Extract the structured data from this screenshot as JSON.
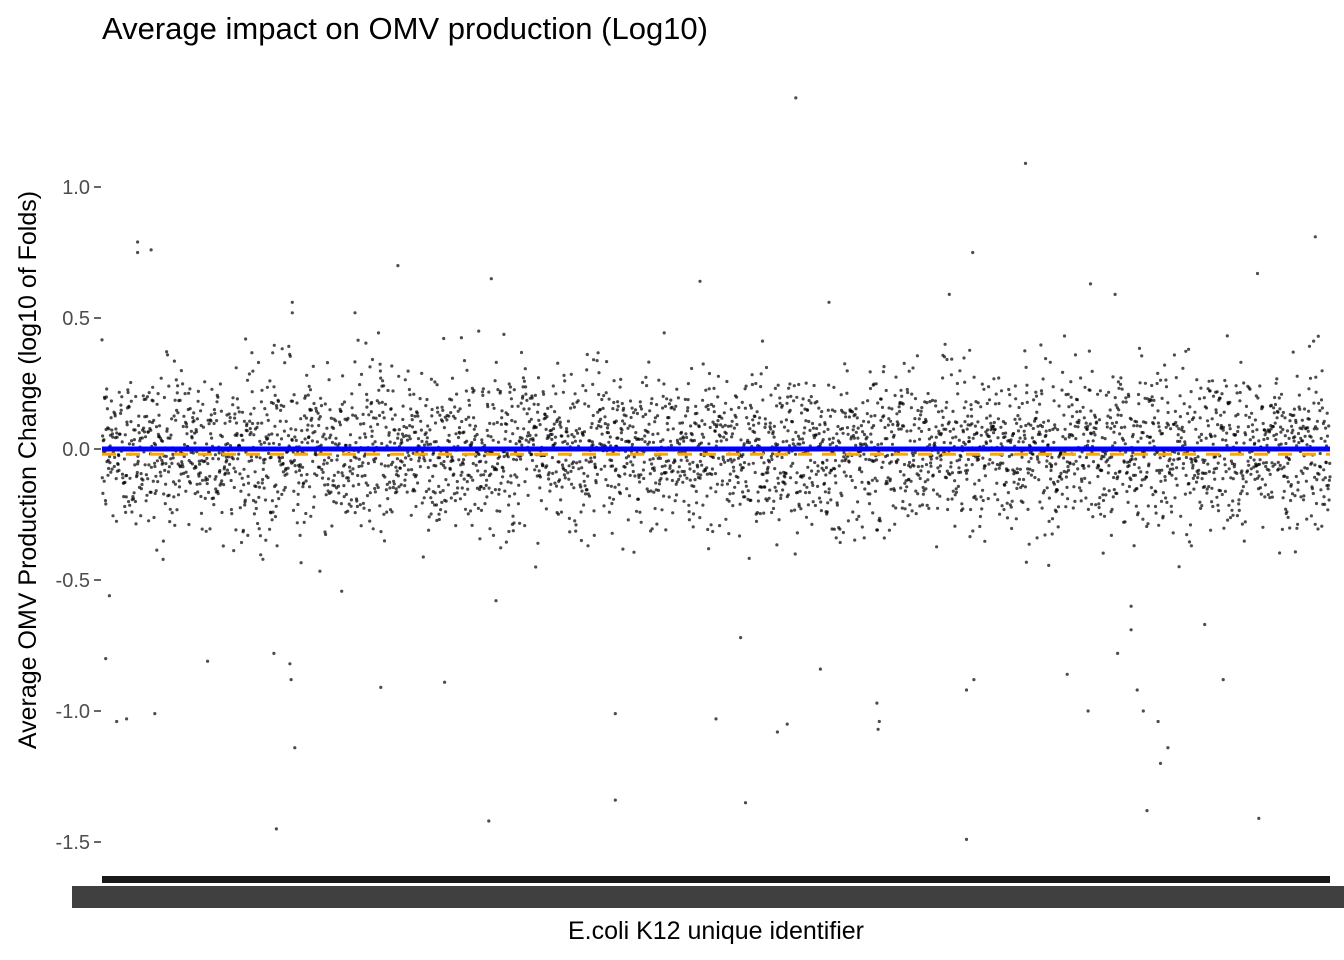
{
  "chart_data": {
    "type": "scatter",
    "title": "Average impact on OMV production (Log10)",
    "xlabel": "E.coli K12 unique identifier",
    "ylabel": "Average OMV Production Change (log10 of Folds)",
    "ylim": [
      -1.63,
      1.4
    ],
    "y_ticks": [
      {
        "value": 1.0,
        "label": "1.0"
      },
      {
        "value": 0.5,
        "label": "0.5"
      },
      {
        "value": 0.0,
        "label": "0.0"
      },
      {
        "value": -0.5,
        "label": "-0.5"
      },
      {
        "value": -1.0,
        "label": "-1.0"
      },
      {
        "value": -1.5,
        "label": "-1.5"
      }
    ],
    "x_tick_labels": "illegible (overplotted identifiers)",
    "grid": false,
    "point_color": "#000000",
    "point_opacity": 0.7,
    "reference_lines": [
      {
        "kind": "solid",
        "y": 0.0,
        "color": "#0000ff"
      },
      {
        "kind": "dashed",
        "y": -0.02,
        "color": "#ffa500"
      }
    ],
    "point_count_estimate": 3900,
    "bulk_distribution": {
      "center": 0.0,
      "spread_sd": 0.15
    },
    "outliers": [
      {
        "x": 0.565,
        "y": 1.34
      },
      {
        "x": 0.752,
        "y": 1.09
      },
      {
        "x": 0.988,
        "y": 0.81
      },
      {
        "x": 0.029,
        "y": 0.79
      },
      {
        "x": 0.029,
        "y": 0.75
      },
      {
        "x": 0.04,
        "y": 0.76
      },
      {
        "x": 0.709,
        "y": 0.75
      },
      {
        "x": 0.241,
        "y": 0.7
      },
      {
        "x": 0.317,
        "y": 0.65
      },
      {
        "x": 0.941,
        "y": 0.67
      },
      {
        "x": 0.487,
        "y": 0.64
      },
      {
        "x": 0.805,
        "y": 0.63
      },
      {
        "x": 0.69,
        "y": 0.59
      },
      {
        "x": 0.592,
        "y": 0.56
      },
      {
        "x": 0.825,
        "y": 0.59
      },
      {
        "x": 0.155,
        "y": 0.56
      },
      {
        "x": 0.155,
        "y": 0.52
      },
      {
        "x": 0.206,
        "y": 0.52
      },
      {
        "x": 0.006,
        "y": -0.56
      },
      {
        "x": 0.003,
        "y": -0.8
      },
      {
        "x": 0.012,
        "y": -1.04
      },
      {
        "x": 0.02,
        "y": -1.03
      },
      {
        "x": 0.043,
        "y": -1.01
      },
      {
        "x": 0.086,
        "y": -0.81
      },
      {
        "x": 0.14,
        "y": -0.78
      },
      {
        "x": 0.153,
        "y": -0.82
      },
      {
        "x": 0.154,
        "y": -0.88
      },
      {
        "x": 0.157,
        "y": -1.14
      },
      {
        "x": 0.142,
        "y": -1.45
      },
      {
        "x": 0.227,
        "y": -0.91
      },
      {
        "x": 0.279,
        "y": -0.89
      },
      {
        "x": 0.315,
        "y": -1.42
      },
      {
        "x": 0.418,
        "y": -1.01
      },
      {
        "x": 0.418,
        "y": -1.34
      },
      {
        "x": 0.5,
        "y": -1.03
      },
      {
        "x": 0.52,
        "y": -0.72
      },
      {
        "x": 0.524,
        "y": -1.35
      },
      {
        "x": 0.55,
        "y": -1.08
      },
      {
        "x": 0.558,
        "y": -1.05
      },
      {
        "x": 0.585,
        "y": -0.84
      },
      {
        "x": 0.631,
        "y": -0.97
      },
      {
        "x": 0.632,
        "y": -1.07
      },
      {
        "x": 0.633,
        "y": -1.04
      },
      {
        "x": 0.704,
        "y": -0.92
      },
      {
        "x": 0.71,
        "y": -0.88
      },
      {
        "x": 0.704,
        "y": -1.49
      },
      {
        "x": 0.786,
        "y": -0.86
      },
      {
        "x": 0.803,
        "y": -1.0
      },
      {
        "x": 0.827,
        "y": -0.78
      },
      {
        "x": 0.838,
        "y": -0.69
      },
      {
        "x": 0.843,
        "y": -0.92
      },
      {
        "x": 0.848,
        "y": -1.0
      },
      {
        "x": 0.86,
        "y": -1.04
      },
      {
        "x": 0.862,
        "y": -1.2
      },
      {
        "x": 0.868,
        "y": -1.14
      },
      {
        "x": 0.851,
        "y": -1.38
      },
      {
        "x": 0.913,
        "y": -0.88
      },
      {
        "x": 0.942,
        "y": -1.41
      },
      {
        "x": 0.898,
        "y": -0.67
      },
      {
        "x": 0.838,
        "y": -0.6
      }
    ]
  }
}
